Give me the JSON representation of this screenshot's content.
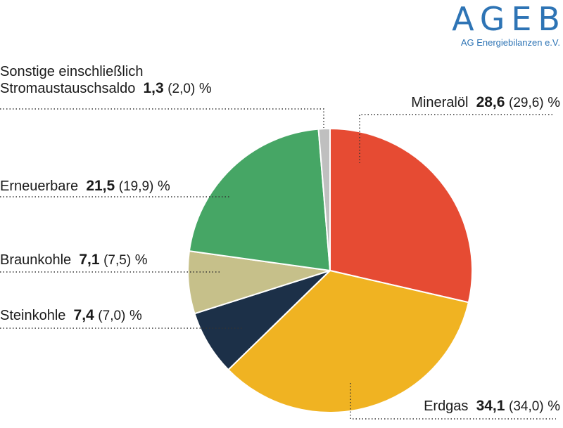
{
  "logo": {
    "mark": "AGEB",
    "subtitle": "AG Energiebilanzen e.V."
  },
  "chart_data": {
    "type": "pie",
    "unit": "%",
    "slices": [
      {
        "name": "Mineralöl",
        "value": 28.6,
        "value_text": "28,6",
        "prev_text": "(29,6)",
        "color": "#e64b33"
      },
      {
        "name": "Erdgas",
        "value": 34.1,
        "value_text": "34,1",
        "prev_text": "(34,0)",
        "color": "#f0b322"
      },
      {
        "name": "Steinkohle",
        "value": 7.4,
        "value_text": "7,4",
        "prev_text": "(7,0)",
        "color": "#1c3048"
      },
      {
        "name": "Braunkohle",
        "value": 7.1,
        "value_text": "7,1",
        "prev_text": "(7,5)",
        "color": "#c6c08a"
      },
      {
        "name": "Erneuerbare",
        "value": 21.5,
        "value_text": "21,5",
        "prev_text": "(19,9)",
        "color": "#46a665"
      },
      {
        "name_line1": "Sonstige einschließlich",
        "name": "Stromaustauschsaldo",
        "value": 1.3,
        "value_text": "1,3",
        "prev_text": "(2,0)",
        "color": "#bfbfbf"
      }
    ]
  }
}
